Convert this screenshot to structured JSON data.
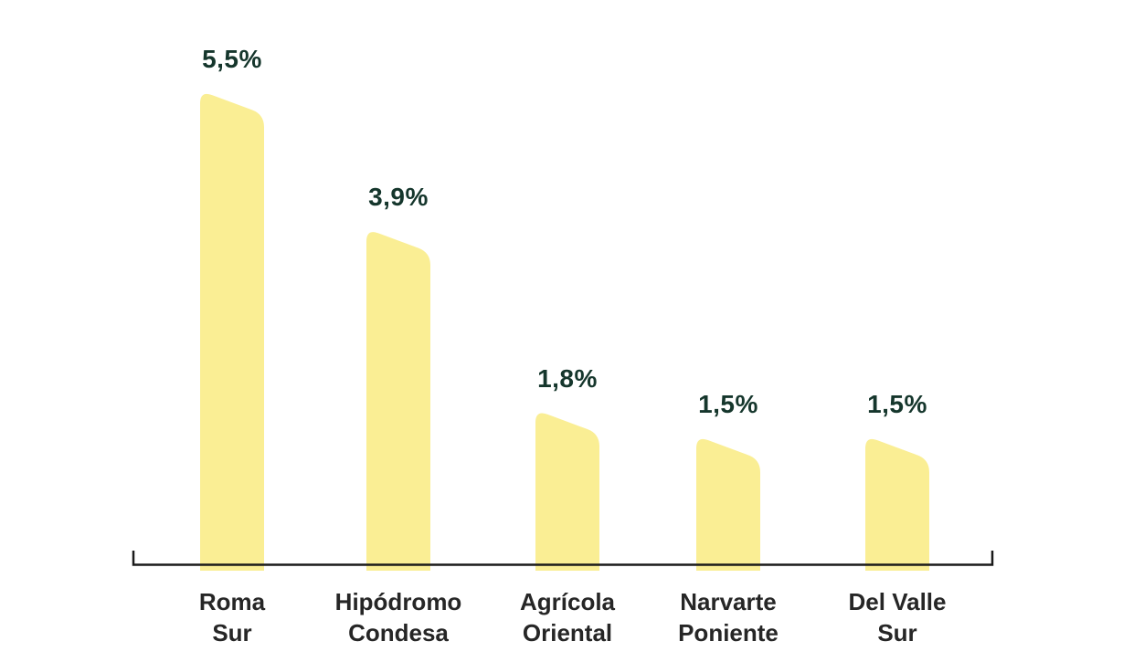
{
  "chart_data": {
    "type": "bar",
    "orientation": "vertical",
    "categories": [
      "Roma\nSur",
      "Hipódromo\nCondesa",
      "Agrícola\nOriental",
      "Narvarte\nPoniente",
      "Del Valle\nSur"
    ],
    "values": [
      5.5,
      3.9,
      1.8,
      1.5,
      1.5
    ],
    "value_labels": [
      "5,5%",
      "3,9%",
      "1,8%",
      "1,5%",
      "1,5%"
    ],
    "ylim": [
      0,
      6
    ],
    "grid": false,
    "legend": "none",
    "bar_style": "rounded top-left, top edge slanted down to the right"
  },
  "colors": {
    "bar_fill": "#FAEE94",
    "value_label": "#15362C",
    "category_label": "#262626",
    "axis": "#1A1A1A",
    "background": "#FFFFFF"
  }
}
